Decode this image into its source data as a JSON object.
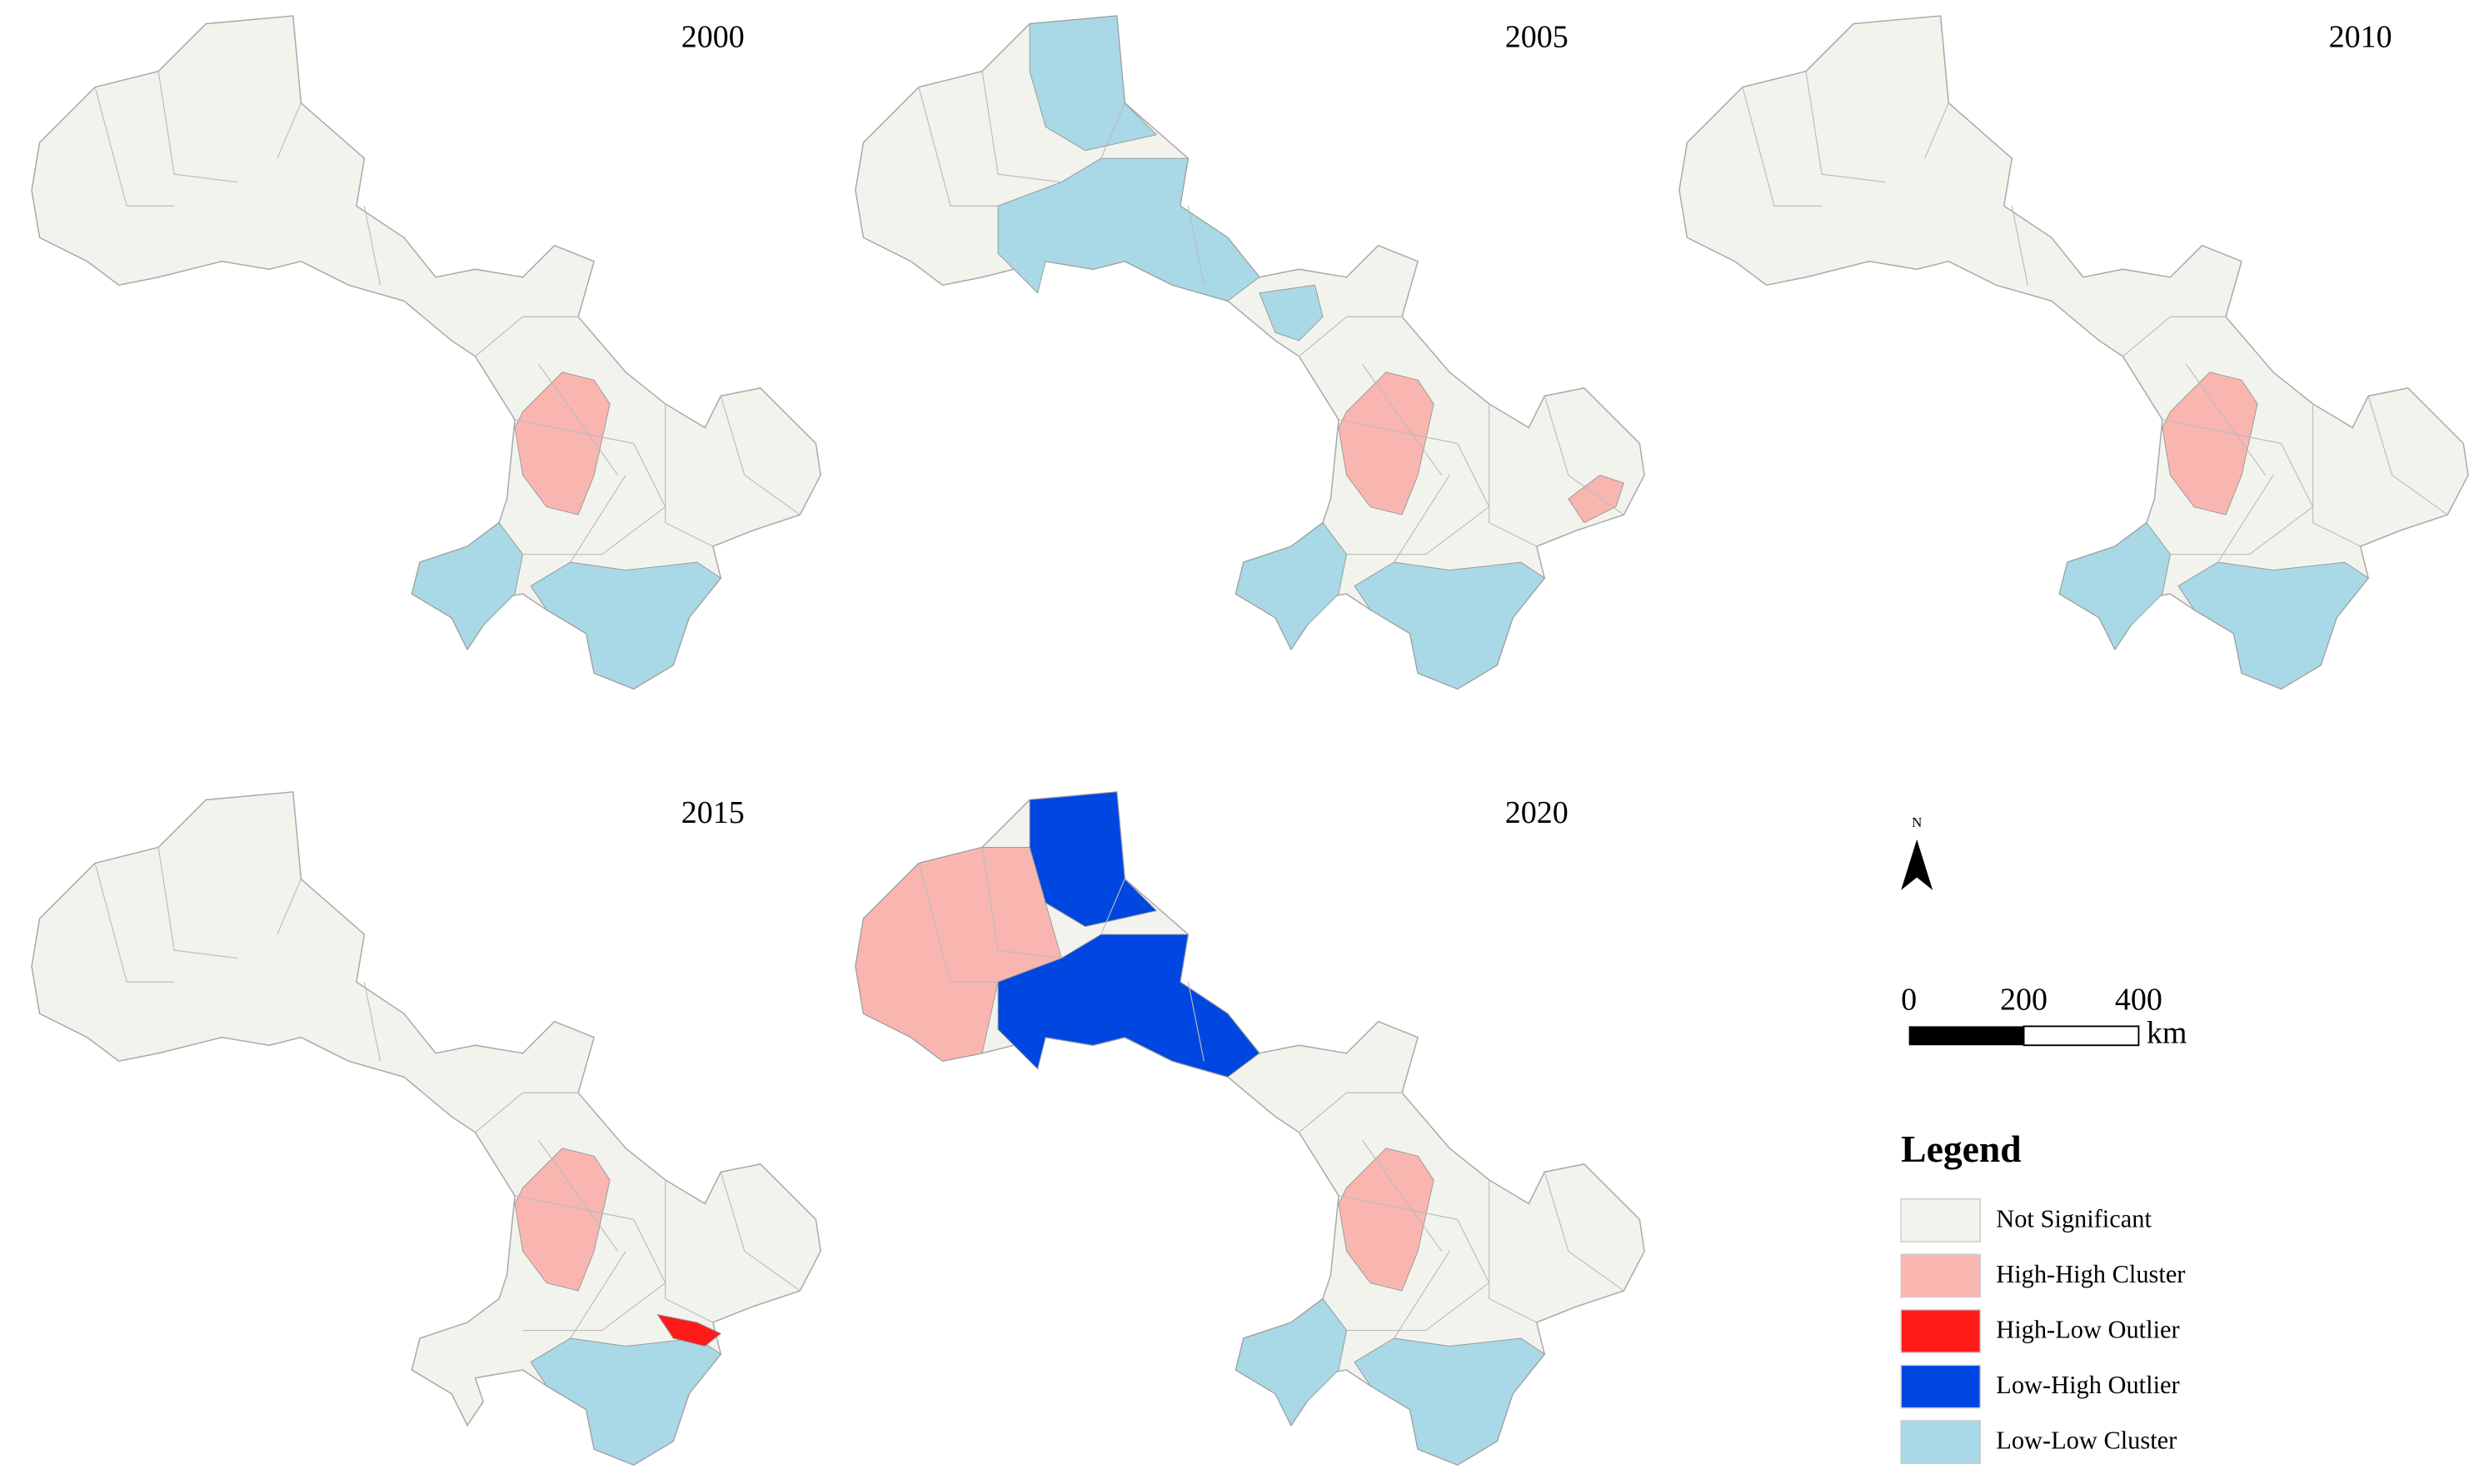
{
  "panels": [
    {
      "year": "2000"
    },
    {
      "year": "2005"
    },
    {
      "year": "2010"
    },
    {
      "year": "2015"
    },
    {
      "year": "2020"
    }
  ],
  "north": "N",
  "scale_bar": {
    "ticks": [
      0,
      200,
      400
    ],
    "unit": "km"
  },
  "legend": {
    "title": "Legend",
    "items": [
      {
        "label": "Not Significant",
        "color": "#f3f3ee"
      },
      {
        "label": "High-High Cluster",
        "color": "#f9b6b0"
      },
      {
        "label": "High-Low Outlier",
        "color": "#ff1a1a"
      },
      {
        "label": "Low-High Outlier",
        "color": "#0046e0"
      },
      {
        "label": "Low-Low Cluster",
        "color": "#a9d8e6"
      }
    ]
  }
}
